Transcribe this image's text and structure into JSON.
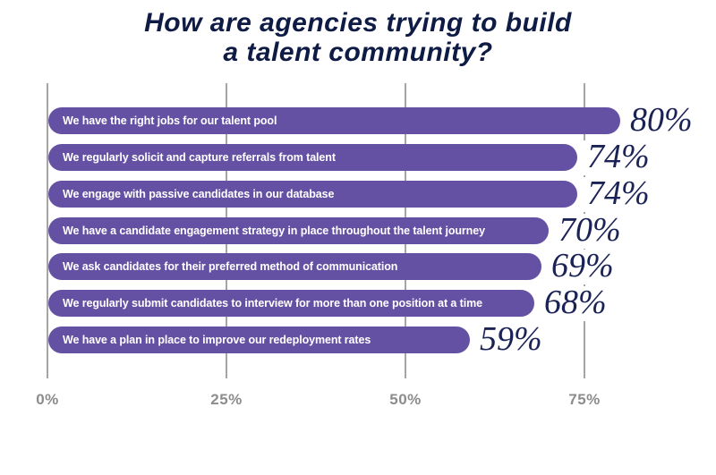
{
  "title": {
    "line1": "How are agencies trying to build",
    "line2": "a talent community?"
  },
  "chart_data": {
    "type": "bar",
    "orientation": "horizontal",
    "title": "How are agencies trying to build a talent community?",
    "categories": [
      "We have the right jobs for our talent pool",
      "We regularly solicit and capture referrals from talent",
      "We engage with passive candidates in our database",
      "We have a candidate engagement strategy in place throughout the talent journey",
      "We ask candidates for their preferred method of communication",
      "We regularly submit candidates to interview for more than one position at a time",
      "We have a plan in place to improve our redeployment rates"
    ],
    "values": [
      80,
      74,
      74,
      70,
      69,
      68,
      59
    ],
    "value_labels": [
      "80%",
      "74%",
      "74%",
      "70%",
      "69%",
      "68%",
      "59%"
    ],
    "xlabel": "",
    "ylabel": "",
    "x_axis": {
      "ticks": [
        "0%",
        "25%",
        "50%",
        "75%"
      ],
      "tick_values": [
        0,
        25,
        50,
        75
      ],
      "range": [
        0,
        87.5
      ],
      "gridlines": true
    },
    "legend": "none",
    "colors": {
      "bar": "#6451A4",
      "bar_label_text": "#FFFFFF",
      "value_text": "#1B2356",
      "title_text": "#0E1B44",
      "axis_text": "#8C8C8C",
      "gridline": "#A5A5A5",
      "background": "#FFFFFF"
    }
  }
}
